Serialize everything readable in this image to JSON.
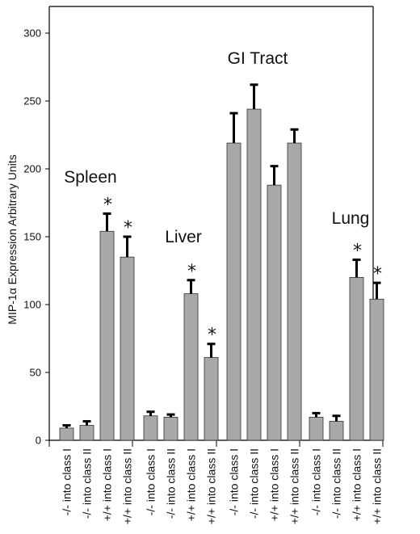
{
  "chart_data": {
    "type": "bar",
    "title": "",
    "xlabel": "",
    "ylabel": "MIP-1α Expression Arbitrary Units",
    "ylim": [
      0,
      310
    ],
    "yticks": [
      0,
      50,
      100,
      150,
      200,
      250,
      300
    ],
    "grid": false,
    "bar_color": "#a8a8a8",
    "error_color": "#000000",
    "groups": [
      {
        "name": "Spleen",
        "bars": [
          {
            "label": "-/- into class I",
            "value": 9,
            "error": 2,
            "significant": false
          },
          {
            "label": "-/- into class II",
            "value": 11,
            "error": 3,
            "significant": false
          },
          {
            "label": "+/+ into class I",
            "value": 154,
            "error": 13,
            "significant": true
          },
          {
            "label": "+/+ into class II",
            "value": 135,
            "error": 15,
            "significant": true
          }
        ]
      },
      {
        "name": "Liver",
        "bars": [
          {
            "label": "-/- into class I",
            "value": 18,
            "error": 3,
            "significant": false
          },
          {
            "label": "-/- into class II",
            "value": 17,
            "error": 2,
            "significant": false
          },
          {
            "label": "+/+ into class I",
            "value": 108,
            "error": 10,
            "significant": true
          },
          {
            "label": "+/+ into class II",
            "value": 61,
            "error": 10,
            "significant": true
          }
        ]
      },
      {
        "name": "GI Tract",
        "bars": [
          {
            "label": "-/- into class I",
            "value": 219,
            "error": 22,
            "significant": false
          },
          {
            "label": "-/- into class II",
            "value": 244,
            "error": 18,
            "significant": false
          },
          {
            "label": "+/+ into class I",
            "value": 188,
            "error": 14,
            "significant": false
          },
          {
            "label": "+/+ into class II",
            "value": 219,
            "error": 10,
            "significant": false
          }
        ]
      },
      {
        "name": "Lung",
        "bars": [
          {
            "label": "-/- into class I",
            "value": 17,
            "error": 3,
            "significant": false
          },
          {
            "label": "-/- into class II",
            "value": 14,
            "error": 4,
            "significant": false
          },
          {
            "label": "+/+ into class I",
            "value": 120,
            "error": 13,
            "significant": true
          },
          {
            "label": "+/+ into class II",
            "value": 104,
            "error": 12,
            "significant": true
          }
        ]
      }
    ],
    "significance_marker": "*"
  }
}
